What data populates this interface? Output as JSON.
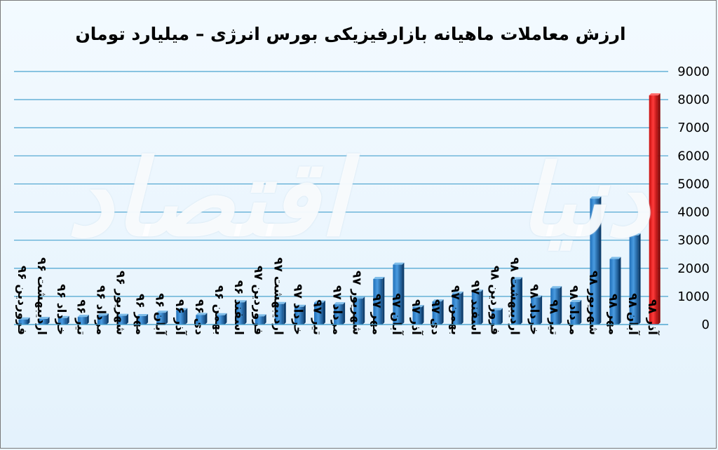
{
  "chart_data": {
    "type": "bar",
    "title": "ارزش معاملات ماهیانه بازارفیزیکی بورس انرژی – میلیارد تومان",
    "categories": [
      "فروردین ۹۶",
      "اردیبهشت ۹۶",
      "خرداد ۹۶",
      "تیر ۹۶",
      "مرداد ۹۶",
      "شهریور ۹۶",
      "مهر ۹۶",
      "آبان ۹۶",
      "آذر ۹۶",
      "دی ۹۶",
      "بهمن ۹۶",
      "اسفند ۹۶",
      "فروردین ۹۷",
      "اردیبهشت ۹۷",
      "خرداد ۹۷",
      "تیر ۹۷",
      "مرداد ۹۷",
      "شهریور ۹۷",
      "مهر ۹۷",
      "آبان ۹۷",
      "آذر ۹۷",
      "دی ۹۷",
      "بهمن ۹۷",
      "اسفند ۹۷",
      "فروردین ۹۸",
      "اردیبهشت ۹۸",
      "خرداد ۹۸",
      "تیر ۹۸",
      "مرداد ۹۸",
      "شهریور ۹۸",
      "مهر ۹۸",
      "آبان ۹۸",
      "آذر ۹۸"
    ],
    "values": [
      180,
      200,
      230,
      270,
      320,
      310,
      300,
      420,
      510,
      340,
      330,
      790,
      290,
      730,
      630,
      780,
      720,
      920,
      1620,
      2130,
      620,
      820,
      1100,
      1170,
      510,
      1610,
      960,
      1290,
      800,
      4480,
      2330,
      3170,
      8150
    ],
    "highlight_index": 32,
    "yticks": [
      "0",
      "1000",
      "2000",
      "3000",
      "4000",
      "5000",
      "6000",
      "7000",
      "8000",
      "9000"
    ],
    "ylim": [
      0,
      9000
    ],
    "grid": true,
    "colors": {
      "bar": "#1f6fb8",
      "bar_light": "#4a9be0",
      "highlight": "#e41818",
      "grid": "#4aa3cf"
    }
  },
  "watermark_text": "دنیای اقتصاد"
}
